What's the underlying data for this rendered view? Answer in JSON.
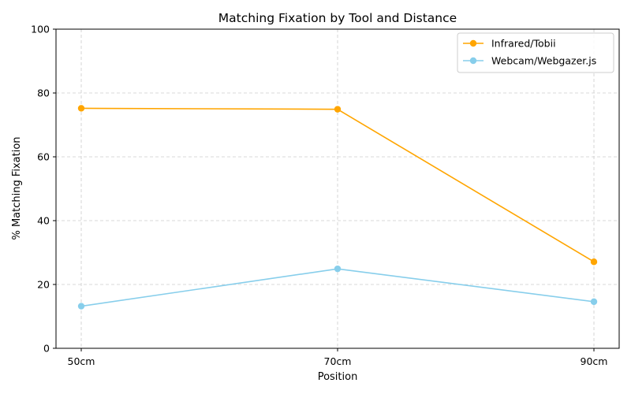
{
  "chart_data": {
    "type": "line",
    "title": "Matching Fixation by Tool and Distance",
    "xlabel": "Position",
    "ylabel": "% Matching Fixation",
    "categories": [
      "50cm",
      "70cm",
      "90cm"
    ],
    "ylim": [
      0,
      100
    ],
    "yticks": [
      0,
      20,
      40,
      60,
      80,
      100
    ],
    "grid": true,
    "legend_position": "top-right",
    "series": [
      {
        "name": "Infrared/Tobii",
        "color": "#FFA500",
        "marker": "circle",
        "values": [
          75.2,
          74.9,
          27.1
        ]
      },
      {
        "name": "Webcam/Webgazer.js",
        "color": "#87CEEB",
        "marker": "circle",
        "values": [
          13.2,
          24.9,
          14.6
        ]
      }
    ]
  }
}
